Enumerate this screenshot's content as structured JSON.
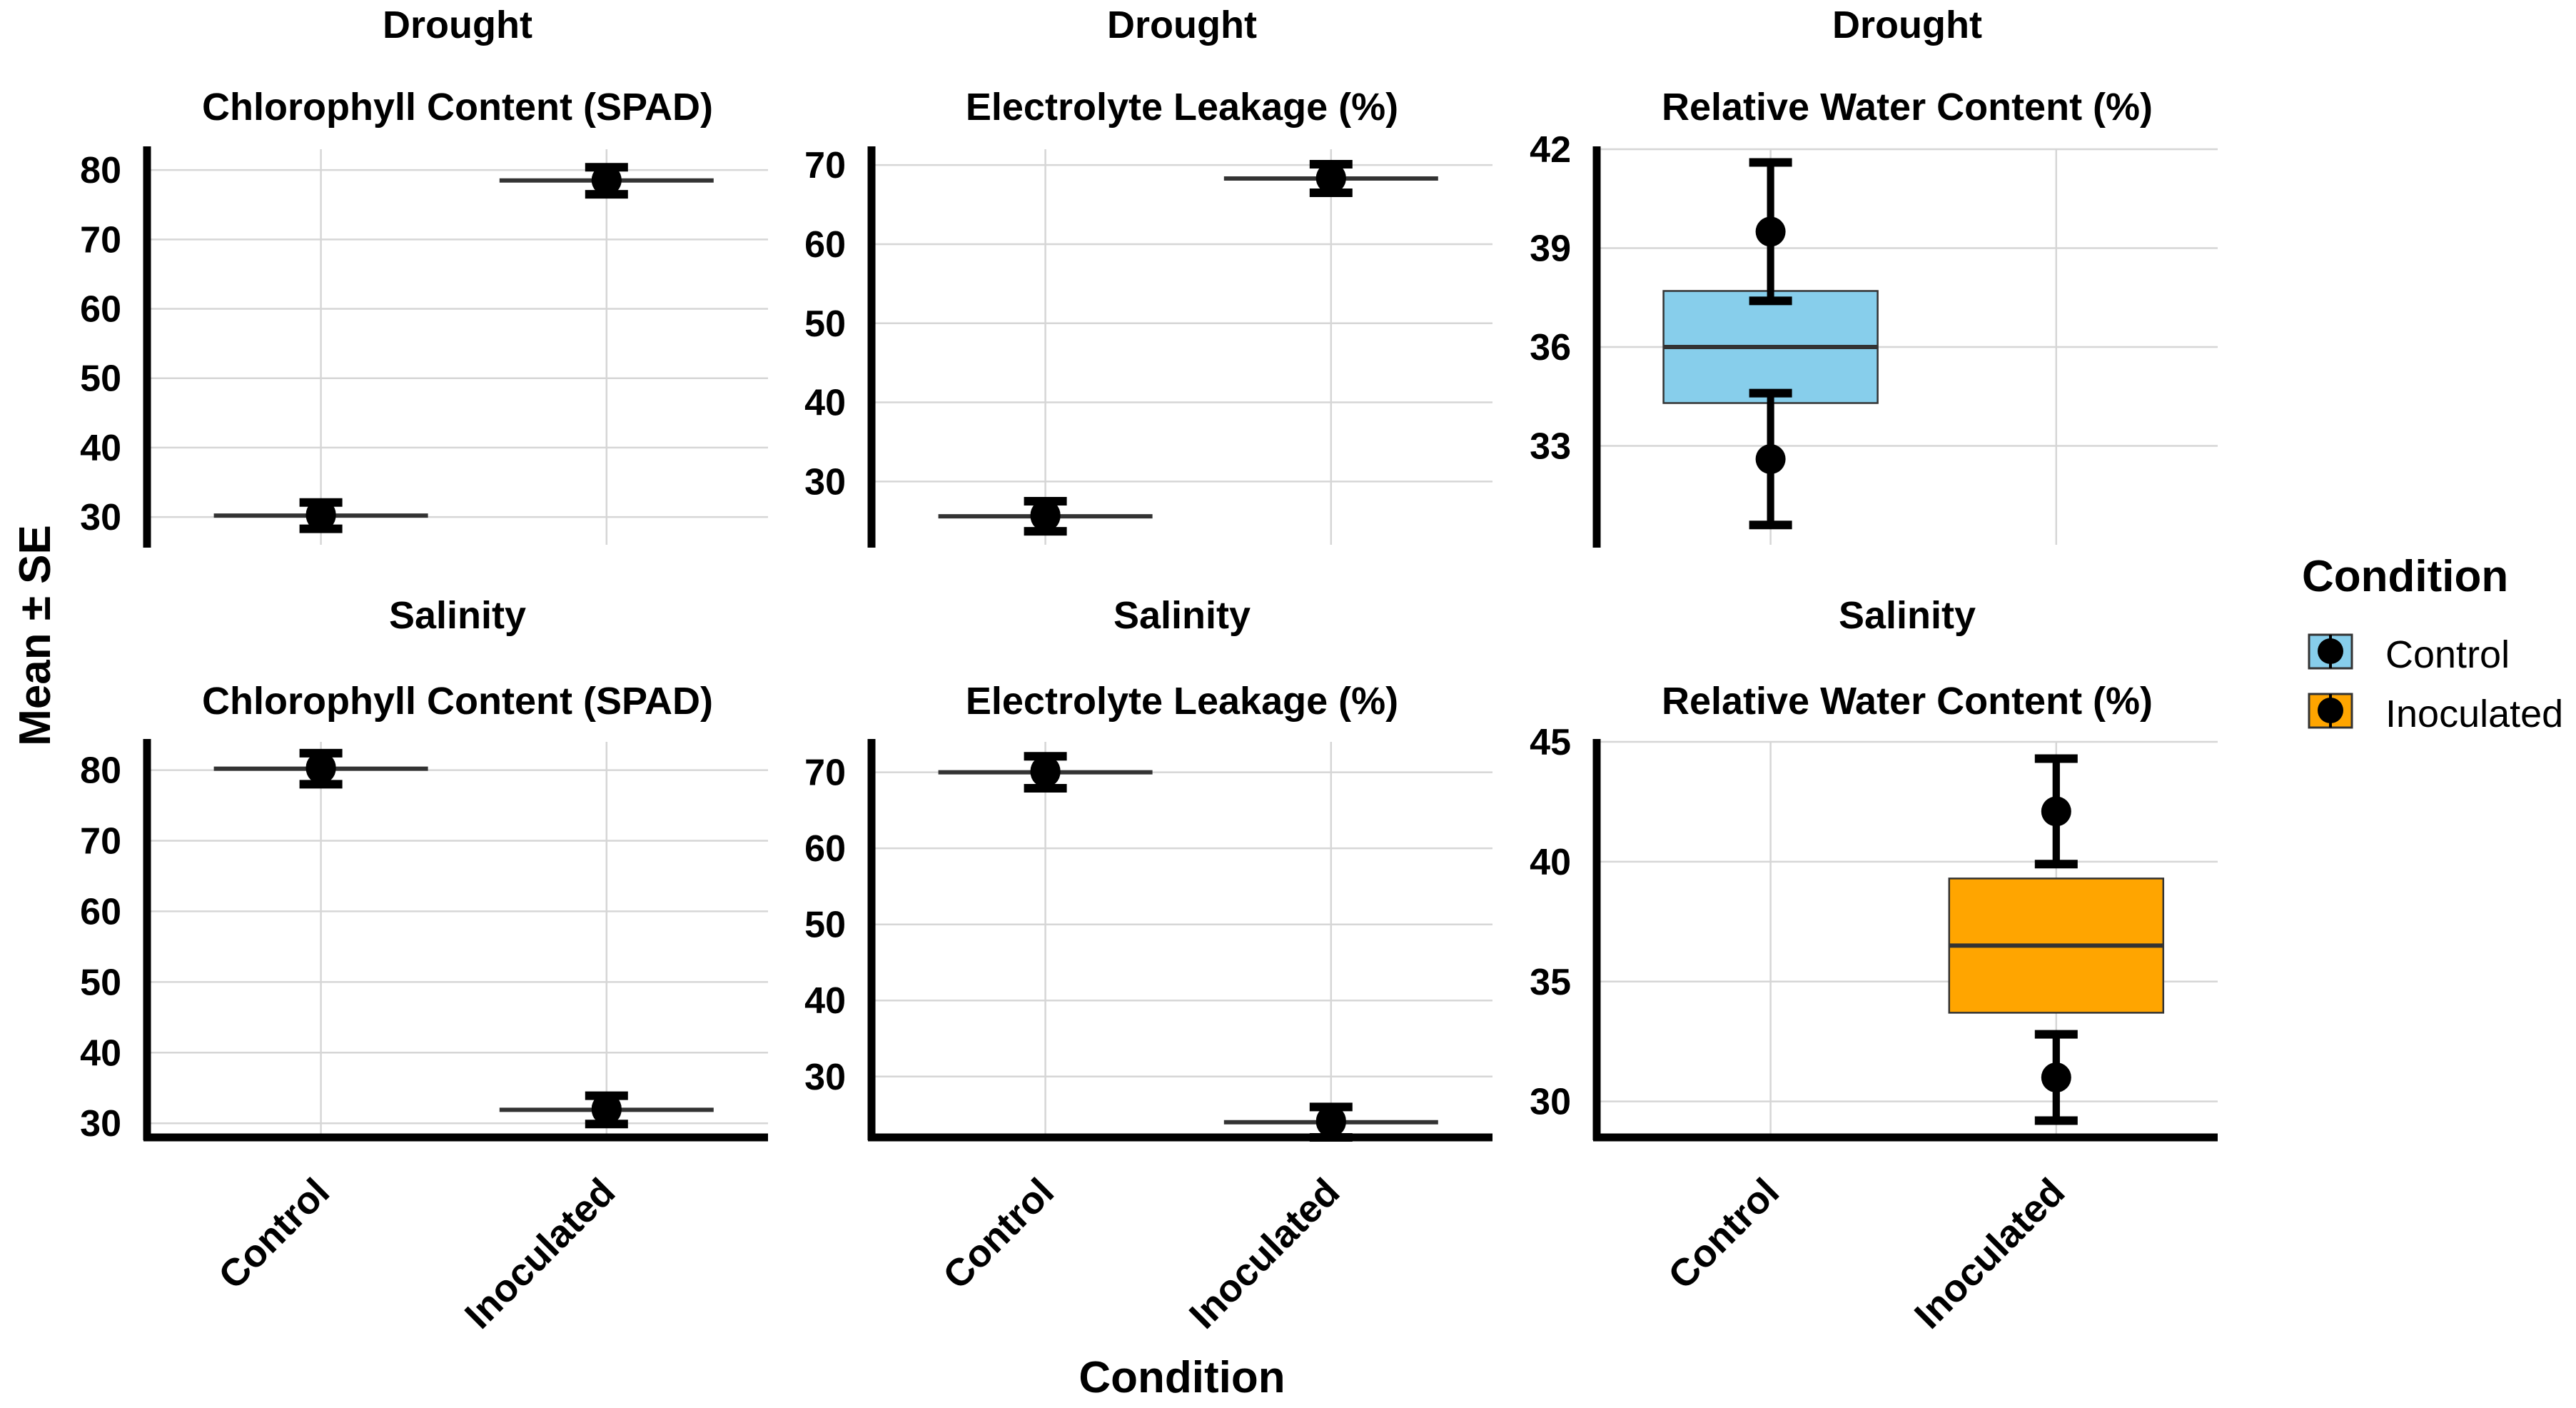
{
  "figure": {
    "xlabel": "Condition",
    "ylabel": "Mean ± SE"
  },
  "legend": {
    "title": "Condition",
    "placement": "right",
    "items": [
      {
        "label": "Control",
        "color": "#87CEEB"
      },
      {
        "label": "Inoculated",
        "color": "#FFA500"
      }
    ]
  },
  "chart_data": [
    {
      "type": "box",
      "strip": "Drought",
      "title": "Chlorophyll Content (SPAD)",
      "categories": [
        "Control",
        "Inoculated"
      ],
      "ylim": [
        26,
        83
      ],
      "yticks": [
        30,
        40,
        50,
        60,
        70,
        80
      ],
      "ytick_labels": [
        "30",
        "40",
        "50",
        "60",
        "70",
        "80"
      ],
      "groups": [
        {
          "condition": "Control",
          "median": 30.2,
          "q1": 30.2,
          "q3": 30.2,
          "err_low": 28.3,
          "err_high": 32.1,
          "points": [
            30.2,
            30.4
          ]
        },
        {
          "condition": "Inoculated",
          "median": 78.5,
          "q1": 78.5,
          "q3": 78.5,
          "err_low": 76.5,
          "err_high": 80.4,
          "points": [
            78.5,
            78.6
          ]
        }
      ]
    },
    {
      "type": "box",
      "strip": "Drought",
      "title": "Electrolyte Leakage (%)",
      "categories": [
        "Control",
        "Inoculated"
      ],
      "ylim": [
        22,
        72
      ],
      "yticks": [
        30,
        40,
        50,
        60,
        70
      ],
      "ytick_labels": [
        "30",
        "40",
        "50",
        "60",
        "70"
      ],
      "groups": [
        {
          "condition": "Control",
          "median": 25.6,
          "q1": 25.6,
          "q3": 25.6,
          "err_low": 23.7,
          "err_high": 27.5,
          "points": [
            25.6,
            25.8
          ]
        },
        {
          "condition": "Inoculated",
          "median": 68.3,
          "q1": 68.3,
          "q3": 68.3,
          "err_low": 66.5,
          "err_high": 70.1,
          "points": [
            68.3,
            68.4
          ]
        }
      ]
    },
    {
      "type": "box",
      "strip": "Drought",
      "title": "Relative Water Content (%)",
      "categories": [
        "Control",
        "Inoculated"
      ],
      "ylim": [
        30,
        42
      ],
      "yticks": [
        33,
        36,
        39,
        42
      ],
      "ytick_labels": [
        "33",
        "36",
        "39",
        "42"
      ],
      "groups": [
        {
          "condition": "Control",
          "fill": "#87CEEB",
          "median": 36.0,
          "q1": 34.3,
          "q3": 37.7,
          "err_bars": [
            [
              30.6,
              34.6
            ],
            [
              37.4,
              41.6
            ]
          ],
          "points": [
            32.6,
            39.5
          ]
        }
      ]
    },
    {
      "type": "box",
      "strip": "Salinity",
      "title": "Chlorophyll Content (SPAD)",
      "categories": [
        "Control",
        "Inoculated"
      ],
      "ylim": [
        28,
        84
      ],
      "yticks": [
        30,
        40,
        50,
        60,
        70,
        80
      ],
      "ytick_labels": [
        "30",
        "40",
        "50",
        "60",
        "70",
        "80"
      ],
      "groups": [
        {
          "condition": "Control",
          "median": 80.2,
          "q1": 80.2,
          "q3": 80.2,
          "err_low": 78.0,
          "err_high": 82.4,
          "points": [
            80.2,
            80.4
          ]
        },
        {
          "condition": "Inoculated",
          "median": 31.9,
          "q1": 31.9,
          "q3": 31.9,
          "err_low": 29.9,
          "err_high": 33.9,
          "points": [
            31.9,
            32.1
          ]
        }
      ]
    },
    {
      "type": "box",
      "strip": "Salinity",
      "title": "Electrolyte Leakage (%)",
      "categories": [
        "Control",
        "Inoculated"
      ],
      "ylim": [
        22,
        74
      ],
      "yticks": [
        30,
        40,
        50,
        60,
        70
      ],
      "ytick_labels": [
        "30",
        "40",
        "50",
        "60",
        "70"
      ],
      "groups": [
        {
          "condition": "Control",
          "median": 70.0,
          "q1": 70.0,
          "q3": 70.0,
          "err_low": 67.9,
          "err_high": 72.1,
          "points": [
            70.0,
            70.2
          ]
        },
        {
          "condition": "Inoculated",
          "median": 24.0,
          "q1": 24.0,
          "q3": 24.0,
          "err_low": 22.0,
          "err_high": 26.0,
          "points": [
            24.0,
            24.2
          ]
        }
      ]
    },
    {
      "type": "box",
      "strip": "Salinity",
      "title": "Relative Water Content (%)",
      "categories": [
        "Control",
        "Inoculated"
      ],
      "ylim": [
        28.5,
        45
      ],
      "yticks": [
        30,
        35,
        40,
        45
      ],
      "ytick_labels": [
        "30",
        "35",
        "40",
        "45"
      ],
      "groups": [
        {
          "condition": "Inoculated",
          "fill": "#FFA500",
          "median": 36.5,
          "q1": 33.7,
          "q3": 39.3,
          "err_bars": [
            [
              29.2,
              32.8
            ],
            [
              39.9,
              44.3
            ]
          ],
          "points": [
            31.0,
            42.1
          ]
        }
      ]
    }
  ]
}
